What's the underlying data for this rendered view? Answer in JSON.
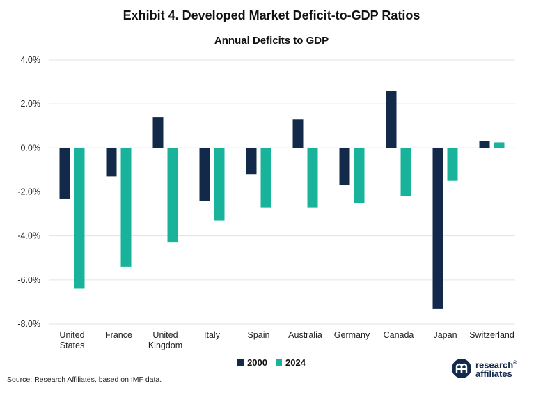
{
  "title": "Exhibit 4. Developed Market Deficit-to-GDP Ratios",
  "source": "Source: Research Affiliates, based on IMF data.",
  "logo": {
    "line1": "research",
    "line2": "affiliates",
    "mark": "®"
  },
  "colors": {
    "series_2000": "#12294a",
    "series_2024": "#19b39b",
    "grid": "#e3e3e3"
  },
  "chart_data": {
    "type": "bar",
    "title": "Annual Deficits to GDP",
    "xlabel": "",
    "ylabel": "",
    "ylim": [
      -8.0,
      4.0
    ],
    "yticks": [
      4.0,
      2.0,
      0.0,
      -2.0,
      -4.0,
      -6.0,
      -8.0
    ],
    "ytick_labels": [
      "4.0%",
      "2.0%",
      "0.0%",
      "-2.0%",
      "-4.0%",
      "-6.0%",
      "-8.0%"
    ],
    "grid": true,
    "legend_position": "bottom-center",
    "categories": [
      [
        "United",
        "States"
      ],
      [
        "France"
      ],
      [
        "United",
        "Kingdom"
      ],
      [
        "Italy"
      ],
      [
        "Spain"
      ],
      [
        "Australia"
      ],
      [
        "Germany"
      ],
      [
        "Canada"
      ],
      [
        "Japan"
      ],
      [
        "Switzerland"
      ]
    ],
    "series": [
      {
        "name": "2000",
        "values": [
          -2.3,
          -1.3,
          1.4,
          -2.4,
          -1.2,
          1.3,
          -1.7,
          2.6,
          -7.3,
          0.3
        ]
      },
      {
        "name": "2024",
        "values": [
          -6.4,
          -5.4,
          -4.3,
          -3.3,
          -2.7,
          -2.7,
          -2.5,
          -2.2,
          -1.5,
          0.25
        ]
      }
    ]
  }
}
